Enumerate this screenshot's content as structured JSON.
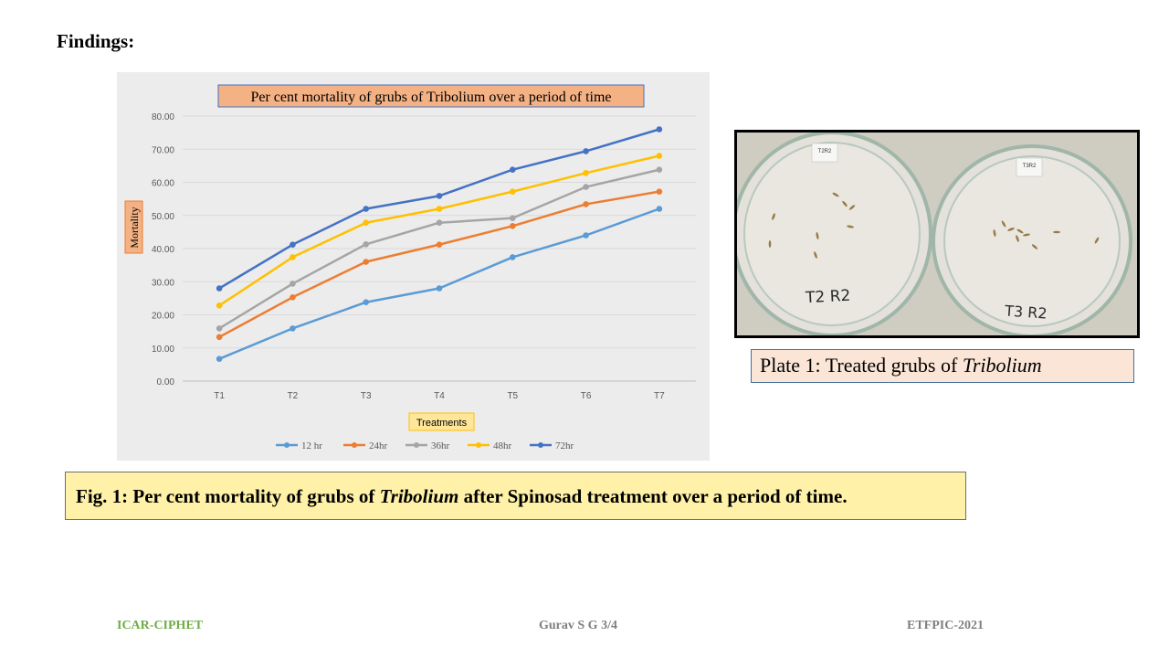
{
  "slide": {
    "heading": "Findings:",
    "plate_caption_prefix": "Plate 1: Treated grubs of ",
    "plate_caption_italic": "Tribolium",
    "plate_labels": {
      "left_tag": "T2R2",
      "right_tag": "T3R2",
      "left_handwritten": "T2 R2",
      "right_handwritten": "T3 R2"
    },
    "fig_caption_prefix": "Fig. 1: Per cent mortality of grubs of ",
    "fig_caption_italic": "Tribolium",
    "fig_caption_suffix": " after Spinosad treatment over a period of time.",
    "footer_left": "ICAR-CIPHET",
    "footer_mid": "Gurav S G 3/4",
    "footer_right": "ETFPIC-2021"
  },
  "chart_data": {
    "type": "line",
    "title": "Per cent mortality of grubs of Tribolium over a period of time",
    "xlabel": "Treatments",
    "ylabel": "Mortality",
    "categories": [
      "T1",
      "T2",
      "T3",
      "T4",
      "T5",
      "T6",
      "T7"
    ],
    "ylim": [
      0,
      80
    ],
    "yticks": [
      "0.00",
      "10.00",
      "20.00",
      "30.00",
      "40.00",
      "50.00",
      "60.00",
      "70.00",
      "80.00"
    ],
    "grid": true,
    "legend_position": "bottom",
    "series": [
      {
        "name": "12 hr",
        "color": "#5b9bd5",
        "values": [
          6.7,
          15.9,
          23.8,
          28.0,
          37.4,
          44.0,
          52.0
        ]
      },
      {
        "name": "24hr",
        "color": "#ed7d31",
        "values": [
          13.3,
          25.3,
          36.0,
          41.2,
          46.8,
          53.4,
          57.2
        ]
      },
      {
        "name": "36hr",
        "color": "#a5a5a5",
        "values": [
          15.9,
          29.4,
          41.3,
          47.8,
          49.2,
          58.6,
          63.8
        ]
      },
      {
        "name": "48hr",
        "color": "#ffc000",
        "values": [
          22.8,
          37.4,
          47.8,
          52.0,
          57.2,
          62.8,
          68.0
        ]
      },
      {
        "name": "72hr",
        "color": "#4472c4",
        "values": [
          28.0,
          41.2,
          52.0,
          55.9,
          63.8,
          69.4,
          76.0
        ]
      }
    ]
  }
}
